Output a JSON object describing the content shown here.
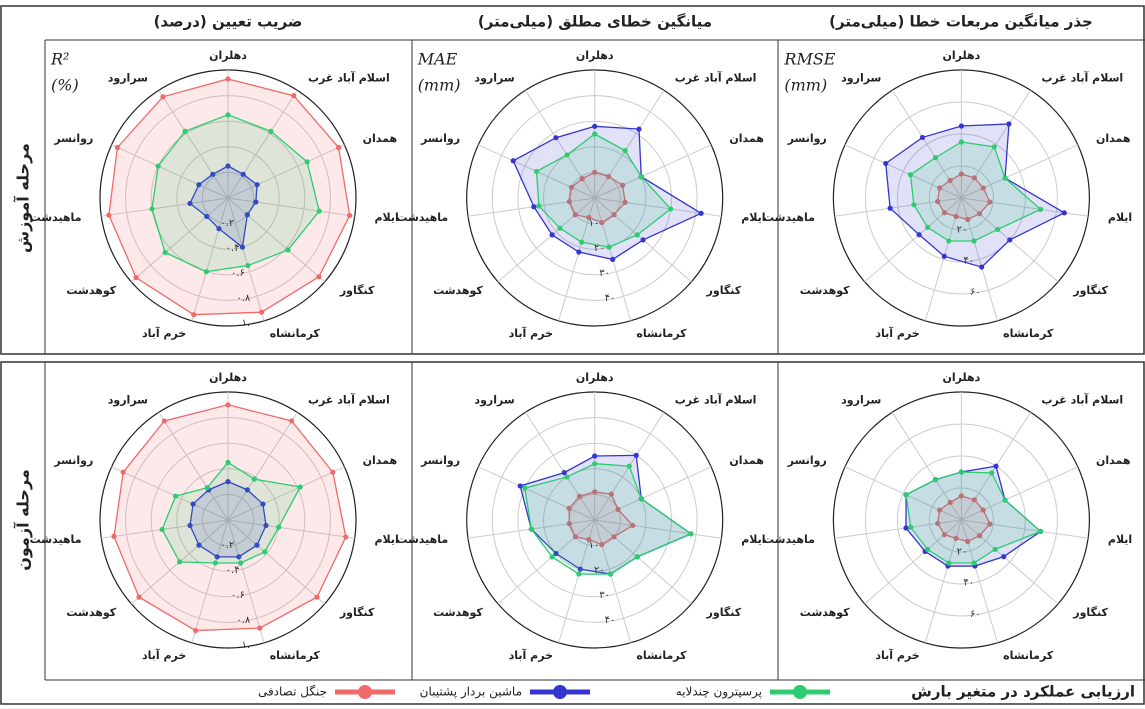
{
  "column_titles": [
    "ضریب تعیین (درصد)",
    "میانگین خطای مطلق (میلی‌متر)",
    "جذر میانگین مربعات خطا (میلی‌متر)"
  ],
  "row_titles": [
    "مرحله آموزش",
    "مرحله آزمون"
  ],
  "footer_title": "ارزیابی عملکرد در متغیر بارش",
  "chart_data": [
    {
      "type": "radar",
      "axis_label": "R²",
      "axis_unit": "(%)",
      "categories": [
        "دهلران",
        "اسلام آباد غرب",
        "همدان",
        "ایلام",
        "کنگاور",
        "کرمانشاه",
        "خرم آباد",
        "کوهدشت",
        "ماهیدشت",
        "روانسر",
        "سرارود"
      ],
      "rlim": [
        0,
        1
      ],
      "rticks": [
        {
          "value": 0.2,
          "label": "۰.۲"
        },
        {
          "value": 0.4,
          "label": "۰.۴"
        },
        {
          "value": 0.6,
          "label": "۰.۶"
        },
        {
          "value": 0.8,
          "label": "۰.۸"
        },
        {
          "value": 1.0,
          "label": "۱.۰"
        }
      ],
      "series": [
        {
          "name": "جنگل تصادفی",
          "color": "#f06a6a",
          "values": [
            0.93,
            0.95,
            0.95,
            0.96,
            0.94,
            0.93,
            0.95,
            0.95,
            0.94,
            0.95,
            0.94
          ]
        },
        {
          "name": "ماشین بردار پشتیبان",
          "color": "#3535d0",
          "values": [
            0.25,
            0.22,
            0.25,
            0.22,
            0.2,
            0.4,
            0.25,
            0.22,
            0.3,
            0.25,
            0.22
          ]
        },
        {
          "name": "پرسپترون چندلایه",
          "color": "#2ecc71",
          "values": [
            0.65,
            0.62,
            0.68,
            0.72,
            0.62,
            0.55,
            0.6,
            0.65,
            0.6,
            0.6,
            0.62
          ]
        }
      ]
    },
    {
      "type": "radar",
      "axis_label": "MAE",
      "axis_unit": "(mm)",
      "categories": [
        "دهلران",
        "اسلام آباد غرب",
        "همدان",
        "ایلام",
        "کنگاور",
        "کرمانشاه",
        "خرم آباد",
        "کوهدشت",
        "ماهیدشت",
        "روانسر",
        "سرارود"
      ],
      "rlim": [
        0,
        50
      ],
      "rticks": [
        {
          "value": 10,
          "label": "۱۰"
        },
        {
          "value": 20,
          "label": "۲۰"
        },
        {
          "value": 30,
          "label": "۳۰"
        },
        {
          "value": 40,
          "label": "۴۰"
        }
      ],
      "series": [
        {
          "name": "جنگل تصادفی",
          "color": "#f06a6a",
          "values": [
            10,
            10,
            12,
            12,
            10,
            10,
            8,
            10,
            10,
            10,
            9
          ]
        },
        {
          "name": "ماشین بردار پشتیبان",
          "color": "#3535d0",
          "values": [
            28,
            32,
            20,
            42,
            25,
            25,
            22,
            22,
            24,
            35,
            28
          ]
        },
        {
          "name": "پرسپترون چندلایه",
          "color": "#2ecc71",
          "values": [
            25,
            22,
            20,
            30,
            22,
            20,
            18,
            18,
            22,
            25,
            20
          ]
        }
      ]
    },
    {
      "type": "radar",
      "axis_label": "RMSE",
      "axis_unit": "(mm)",
      "categories": [
        "دهلران",
        "اسلام آباد غرب",
        "همدان",
        "ایلام",
        "کنگاور",
        "کرمانشاه",
        "خرم آباد",
        "کوهدشت",
        "ماهیدشت",
        "روانسر",
        "سرارود"
      ],
      "rlim": [
        0,
        80
      ],
      "rticks": [
        {
          "value": 20,
          "label": "۲۰"
        },
        {
          "value": 40,
          "label": "۴۰"
        },
        {
          "value": 60,
          "label": "۶۰"
        }
      ],
      "series": [
        {
          "name": "جنگل تصادفی",
          "color": "#f06a6a",
          "values": [
            15,
            15,
            15,
            18,
            15,
            14,
            12,
            14,
            15,
            15,
            13
          ]
        },
        {
          "name": "ماشین بردار پشتیبان",
          "color": "#3535d0",
          "values": [
            45,
            55,
            30,
            65,
            40,
            45,
            38,
            35,
            45,
            52,
            45
          ]
        },
        {
          "name": "پرسپترون چندلایه",
          "color": "#2ecc71",
          "values": [
            35,
            38,
            30,
            50,
            30,
            28,
            28,
            28,
            30,
            35,
            30
          ]
        }
      ]
    },
    {
      "type": "radar",
      "categories": [
        "دهلران",
        "اسلام آباد غرب",
        "همدان",
        "ایلام",
        "کنگاور",
        "کرمانشاه",
        "خرم آباد",
        "کوهدشت",
        "ماهیدشت",
        "روانسر",
        "سرارود"
      ],
      "rlim": [
        0,
        1
      ],
      "rticks": [
        {
          "value": 0.2,
          "label": "۰.۲"
        },
        {
          "value": 0.4,
          "label": "۰.۴"
        },
        {
          "value": 0.6,
          "label": "۰.۶"
        },
        {
          "value": 0.8,
          "label": "۰.۸"
        },
        {
          "value": 1.0,
          "label": "۱.۰"
        }
      ],
      "series": [
        {
          "name": "جنگل تصادفی",
          "color": "#f06a6a",
          "values": [
            0.9,
            0.92,
            0.9,
            0.93,
            0.92,
            0.88,
            0.9,
            0.92,
            0.9,
            0.9,
            0.92
          ]
        },
        {
          "name": "ماشین بردار پشتیبان",
          "color": "#3535d0",
          "values": [
            0.3,
            0.28,
            0.3,
            0.3,
            0.3,
            0.3,
            0.3,
            0.3,
            0.3,
            0.3,
            0.28
          ]
        },
        {
          "name": "پرسپترون چندلایه",
          "color": "#2ecc71",
          "values": [
            0.45,
            0.38,
            0.62,
            0.4,
            0.38,
            0.35,
            0.35,
            0.5,
            0.52,
            0.45,
            0.3
          ]
        }
      ]
    },
    {
      "type": "radar",
      "categories": [
        "دهلران",
        "اسلام آباد غرب",
        "همدان",
        "ایلام",
        "کنگاور",
        "کرمانشاه",
        "خرم آباد",
        "کوهدشت",
        "ماهیدشت",
        "روانسر",
        "سرارود"
      ],
      "rlim": [
        0,
        50
      ],
      "rticks": [
        {
          "value": 10,
          "label": "۱۰"
        },
        {
          "value": 20,
          "label": "۲۰"
        },
        {
          "value": 30,
          "label": "۳۰"
        },
        {
          "value": 40,
          "label": "۴۰"
        }
      ],
      "series": [
        {
          "name": "جنگل تصادفی",
          "color": "#f06a6a",
          "values": [
            11,
            12,
            10,
            15,
            10,
            10,
            8,
            10,
            10,
            11,
            11
          ]
        },
        {
          "name": "ماشین بردار پشتیبان",
          "color": "#3535d0",
          "values": [
            25,
            30,
            20,
            38,
            22,
            22,
            20,
            20,
            25,
            32,
            22
          ]
        },
        {
          "name": "پرسپترون چندلایه",
          "color": "#2ecc71",
          "values": [
            22,
            25,
            20,
            38,
            22,
            22,
            22,
            22,
            25,
            30,
            20
          ]
        }
      ]
    },
    {
      "type": "radar",
      "categories": [
        "دهلران",
        "اسلام آباد غرب",
        "همدان",
        "ایلام",
        "کنگاور",
        "کرمانشاه",
        "خرم آباد",
        "کوهدشت",
        "ماهیدشت",
        "روانسر",
        "سرارود"
      ],
      "rlim": [
        0,
        80
      ],
      "rticks": [
        {
          "value": 20,
          "label": "۲۰"
        },
        {
          "value": 40,
          "label": "۴۰"
        },
        {
          "value": 60,
          "label": "۶۰"
        }
      ],
      "series": [
        {
          "name": "جنگل تصادفی",
          "color": "#f06a6a",
          "values": [
            15,
            15,
            15,
            18,
            15,
            14,
            12,
            14,
            15,
            15,
            13
          ]
        },
        {
          "name": "ماشین بردار پشتیبان",
          "color": "#3535d0",
          "values": [
            30,
            40,
            30,
            50,
            35,
            30,
            30,
            30,
            35,
            38,
            30
          ]
        },
        {
          "name": "پرسپترون چندلایه",
          "color": "#2ecc71",
          "values": [
            30,
            35,
            30,
            50,
            28,
            28,
            28,
            28,
            32,
            38,
            30
          ]
        }
      ]
    }
  ]
}
